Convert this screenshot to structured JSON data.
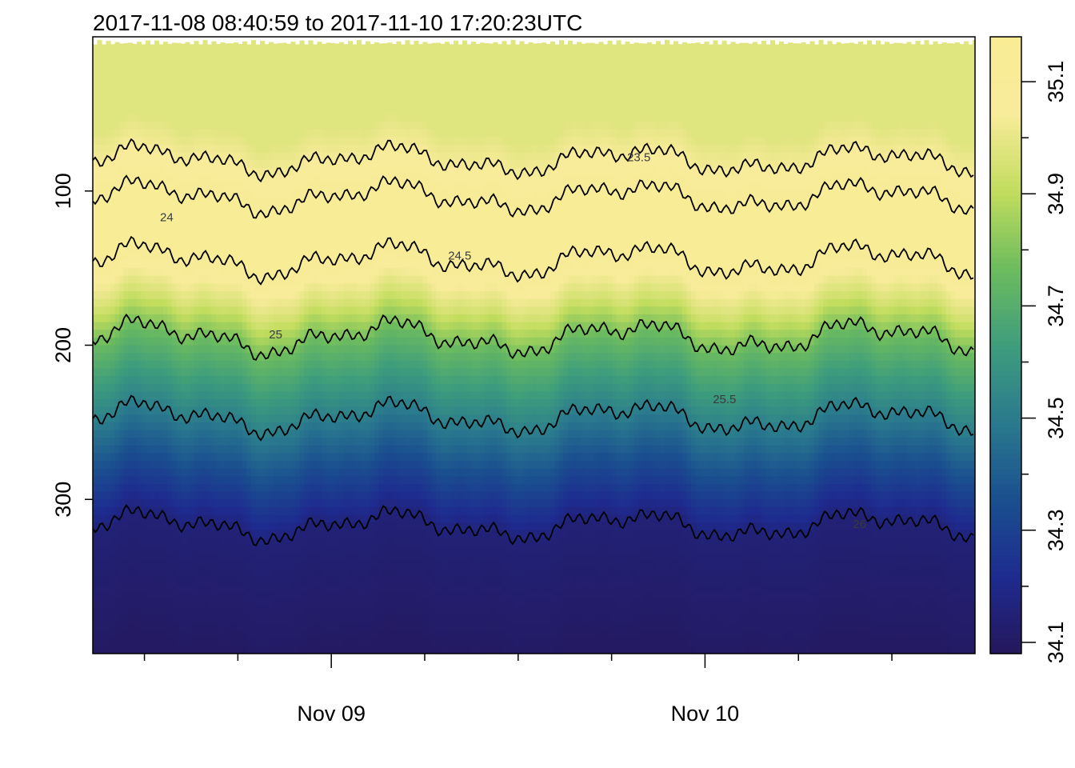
{
  "chart_data": {
    "type": "heatmap",
    "title": "2017-11-08 08:40:59 to 2017-11-10 17:20:23UTC",
    "xlabel": "",
    "ylabel": "",
    "x_range": [
      "2017-11-08 08:40:59",
      "2017-11-10 17:20:23"
    ],
    "y_axis": {
      "reversed": true,
      "range": [
        0,
        400
      ],
      "ticks": [
        100,
        200,
        300
      ],
      "tick_labels": [
        "100",
        "200",
        "300"
      ]
    },
    "x_axis": {
      "major_ticks": [
        "2017-11-09",
        "2017-11-10"
      ],
      "major_labels": [
        "Nov 09",
        "Nov 10"
      ],
      "minor_ticks": [
        "2017-11-08 12:00",
        "2017-11-08 18:00",
        "2017-11-09 06:00",
        "2017-11-09 12:00",
        "2017-11-09 18:00",
        "2017-11-10 06:00",
        "2017-11-10 12:00"
      ]
    },
    "colorbar": {
      "range": [
        34.08,
        35.18
      ],
      "major_ticks": [
        34.1,
        34.3,
        34.5,
        34.7,
        34.9,
        35.1
      ],
      "major_labels": [
        "34.1",
        "34.3",
        "34.5",
        "34.7",
        "34.9",
        "35.1"
      ],
      "minor_ticks": [
        34.2,
        34.4,
        34.6,
        34.8,
        35.0
      ],
      "colors": [
        "#25175b",
        "#1e2b8f",
        "#1a4f8f",
        "#2a7a8e",
        "#3e9d7c",
        "#6dbc5e",
        "#c2dd5e",
        "#f8eb9a",
        "#f9ec95"
      ]
    },
    "grid": false,
    "contours": [
      {
        "level": 23.5,
        "label": "23.5",
        "mean_depth": 80,
        "amplitude": 12,
        "label_x": "2017-11-09 19:00",
        "label_depth": 78
      },
      {
        "level": 24,
        "label": "24",
        "mean_depth": 104,
        "amplitude": 13,
        "label_x": "2017-11-08 13:00",
        "label_depth": 117
      },
      {
        "level": 24.5,
        "label": "24.5",
        "mean_depth": 145,
        "amplitude": 14,
        "label_x": "2017-11-09 07:30",
        "label_depth": 142
      },
      {
        "level": 25,
        "label": "25",
        "mean_depth": 195,
        "amplitude": 14,
        "label_x": "2017-11-08 20:00",
        "label_depth": 193
      },
      {
        "level": 25.5,
        "label": "25.5",
        "mean_depth": 247,
        "amplitude": 13,
        "label_x": "2017-11-10 00:30",
        "label_depth": 235
      },
      {
        "level": 26,
        "label": "26",
        "mean_depth": 317,
        "amplitude": 12,
        "label_x": "2017-11-10 09:30",
        "label_depth": 316
      }
    ],
    "salinity_profile": [
      {
        "depth": 0,
        "value": 34.98
      },
      {
        "depth": 60,
        "value": 34.98
      },
      {
        "depth": 85,
        "value": 35.05
      },
      {
        "depth": 105,
        "value": 35.12
      },
      {
        "depth": 130,
        "value": 35.15
      },
      {
        "depth": 150,
        "value": 35.1
      },
      {
        "depth": 175,
        "value": 34.95
      },
      {
        "depth": 200,
        "value": 34.75
      },
      {
        "depth": 230,
        "value": 34.6
      },
      {
        "depth": 260,
        "value": 34.45
      },
      {
        "depth": 290,
        "value": 34.3
      },
      {
        "depth": 320,
        "value": 34.15
      },
      {
        "depth": 400,
        "value": 34.1
      }
    ]
  }
}
